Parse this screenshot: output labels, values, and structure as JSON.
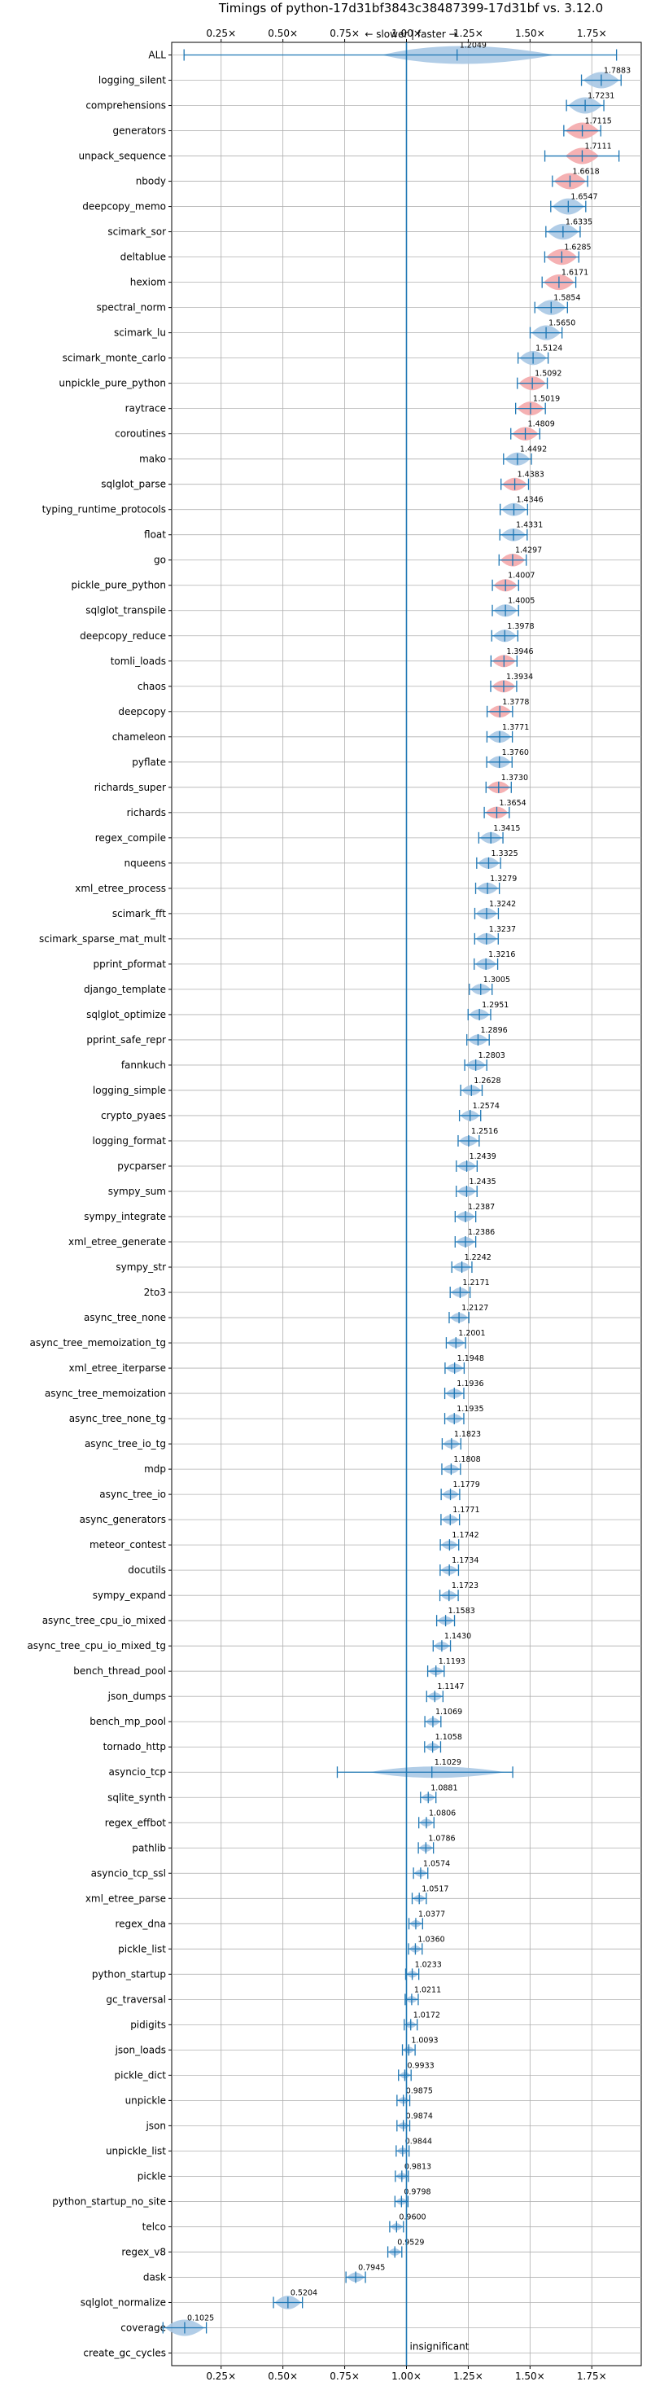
{
  "chart_data": {
    "type": "violin",
    "title": "Timings of python-17d31bf3843c38487399-17d31bf vs. 3.12.0",
    "direction_note": "← slower | faster →",
    "annotation": "insignificant",
    "xlim": [
      0.05,
      1.95
    ],
    "x_ticks": [
      0.25,
      0.5,
      0.75,
      1.0,
      1.25,
      1.5,
      1.75
    ],
    "x_tick_labels": [
      "0.25×",
      "0.50×",
      "0.75×",
      "1.00×",
      "1.25×",
      "1.50×",
      "1.75×"
    ],
    "grid": true,
    "colors": {
      "faster": "#a8c8e4",
      "improved": "#f4a8ab",
      "line": "#1f77b4"
    },
    "benchmarks": [
      {
        "name": "ALL",
        "value": 1.2049,
        "label": "1.2049",
        "color": "blue"
      },
      {
        "name": "logging_silent",
        "value": 1.7883,
        "label": "1.7883",
        "color": "blue"
      },
      {
        "name": "comprehensions",
        "value": 1.7231,
        "label": "1.7231",
        "color": "blue"
      },
      {
        "name": "generators",
        "value": 1.7115,
        "label": "1.7115",
        "color": "red"
      },
      {
        "name": "unpack_sequence",
        "value": 1.7111,
        "label": "1.7111",
        "color": "red"
      },
      {
        "name": "nbody",
        "value": 1.6618,
        "label": "1.6618",
        "color": "red"
      },
      {
        "name": "deepcopy_memo",
        "value": 1.6547,
        "label": "1.6547",
        "color": "blue"
      },
      {
        "name": "scimark_sor",
        "value": 1.6335,
        "label": "1.6335",
        "color": "blue"
      },
      {
        "name": "deltablue",
        "value": 1.6285,
        "label": "1.6285",
        "color": "red"
      },
      {
        "name": "hexiom",
        "value": 1.6171,
        "label": "1.6171",
        "color": "red"
      },
      {
        "name": "spectral_norm",
        "value": 1.5854,
        "label": "1.5854",
        "color": "blue"
      },
      {
        "name": "scimark_lu",
        "value": 1.565,
        "label": "1.5650",
        "color": "blue"
      },
      {
        "name": "scimark_monte_carlo",
        "value": 1.5124,
        "label": "1.5124",
        "color": "blue"
      },
      {
        "name": "unpickle_pure_python",
        "value": 1.5092,
        "label": "1.5092",
        "color": "red"
      },
      {
        "name": "raytrace",
        "value": 1.5019,
        "label": "1.5019",
        "color": "red"
      },
      {
        "name": "coroutines",
        "value": 1.4809,
        "label": "1.4809",
        "color": "red"
      },
      {
        "name": "mako",
        "value": 1.4492,
        "label": "1.4492",
        "color": "blue"
      },
      {
        "name": "sqlglot_parse",
        "value": 1.4383,
        "label": "1.4383",
        "color": "red"
      },
      {
        "name": "typing_runtime_protocols",
        "value": 1.4346,
        "label": "1.4346",
        "color": "blue"
      },
      {
        "name": "float",
        "value": 1.4331,
        "label": "1.4331",
        "color": "blue"
      },
      {
        "name": "go",
        "value": 1.4297,
        "label": "1.4297",
        "color": "red"
      },
      {
        "name": "pickle_pure_python",
        "value": 1.4007,
        "label": "1.4007",
        "color": "red"
      },
      {
        "name": "sqlglot_transpile",
        "value": 1.4005,
        "label": "1.4005",
        "color": "blue"
      },
      {
        "name": "deepcopy_reduce",
        "value": 1.3978,
        "label": "1.3978",
        "color": "blue"
      },
      {
        "name": "tomli_loads",
        "value": 1.3946,
        "label": "1.3946",
        "color": "red"
      },
      {
        "name": "chaos",
        "value": 1.3934,
        "label": "1.3934",
        "color": "red"
      },
      {
        "name": "deepcopy",
        "value": 1.3778,
        "label": "1.3778",
        "color": "red"
      },
      {
        "name": "chameleon",
        "value": 1.3771,
        "label": "1.3771",
        "color": "blue"
      },
      {
        "name": "pyflate",
        "value": 1.376,
        "label": "1.3760",
        "color": "blue"
      },
      {
        "name": "richards_super",
        "value": 1.373,
        "label": "1.3730",
        "color": "red"
      },
      {
        "name": "richards",
        "value": 1.3654,
        "label": "1.3654",
        "color": "red"
      },
      {
        "name": "regex_compile",
        "value": 1.3415,
        "label": "1.3415",
        "color": "blue"
      },
      {
        "name": "nqueens",
        "value": 1.3325,
        "label": "1.3325",
        "color": "blue"
      },
      {
        "name": "xml_etree_process",
        "value": 1.3279,
        "label": "1.3279",
        "color": "blue"
      },
      {
        "name": "scimark_fft",
        "value": 1.3242,
        "label": "1.3242",
        "color": "blue"
      },
      {
        "name": "scimark_sparse_mat_mult",
        "value": 1.3237,
        "label": "1.3237",
        "color": "blue"
      },
      {
        "name": "pprint_pformat",
        "value": 1.3216,
        "label": "1.3216",
        "color": "blue"
      },
      {
        "name": "django_template",
        "value": 1.3005,
        "label": "1.3005",
        "color": "blue"
      },
      {
        "name": "sqlglot_optimize",
        "value": 1.2951,
        "label": "1.2951",
        "color": "blue"
      },
      {
        "name": "pprint_safe_repr",
        "value": 1.2896,
        "label": "1.2896",
        "color": "blue"
      },
      {
        "name": "fannkuch",
        "value": 1.2803,
        "label": "1.2803",
        "color": "blue"
      },
      {
        "name": "logging_simple",
        "value": 1.2628,
        "label": "1.2628",
        "color": "blue"
      },
      {
        "name": "crypto_pyaes",
        "value": 1.2574,
        "label": "1.2574",
        "color": "blue"
      },
      {
        "name": "logging_format",
        "value": 1.2516,
        "label": "1.2516",
        "color": "blue"
      },
      {
        "name": "pycparser",
        "value": 1.2439,
        "label": "1.2439",
        "color": "blue"
      },
      {
        "name": "sympy_sum",
        "value": 1.2435,
        "label": "1.2435",
        "color": "blue"
      },
      {
        "name": "sympy_integrate",
        "value": 1.2387,
        "label": "1.2387",
        "color": "blue"
      },
      {
        "name": "xml_etree_generate",
        "value": 1.2386,
        "label": "1.2386",
        "color": "blue"
      },
      {
        "name": "sympy_str",
        "value": 1.2242,
        "label": "1.2242",
        "color": "blue"
      },
      {
        "name": "2to3",
        "value": 1.2171,
        "label": "1.2171",
        "color": "blue"
      },
      {
        "name": "async_tree_none",
        "value": 1.2127,
        "label": "1.2127",
        "color": "blue"
      },
      {
        "name": "async_tree_memoization_tg",
        "value": 1.2001,
        "label": "1.2001",
        "color": "blue"
      },
      {
        "name": "xml_etree_iterparse",
        "value": 1.1948,
        "label": "1.1948",
        "color": "blue"
      },
      {
        "name": "async_tree_memoization",
        "value": 1.1936,
        "label": "1.1936",
        "color": "blue"
      },
      {
        "name": "async_tree_none_tg",
        "value": 1.1935,
        "label": "1.1935",
        "color": "blue"
      },
      {
        "name": "async_tree_io_tg",
        "value": 1.1823,
        "label": "1.1823",
        "color": "blue"
      },
      {
        "name": "mdp",
        "value": 1.1808,
        "label": "1.1808",
        "color": "blue"
      },
      {
        "name": "async_tree_io",
        "value": 1.1779,
        "label": "1.1779",
        "color": "blue"
      },
      {
        "name": "async_generators",
        "value": 1.1771,
        "label": "1.1771",
        "color": "blue"
      },
      {
        "name": "meteor_contest",
        "value": 1.1742,
        "label": "1.1742",
        "color": "blue"
      },
      {
        "name": "docutils",
        "value": 1.1734,
        "label": "1.1734",
        "color": "blue"
      },
      {
        "name": "sympy_expand",
        "value": 1.1723,
        "label": "1.1723",
        "color": "blue"
      },
      {
        "name": "async_tree_cpu_io_mixed",
        "value": 1.1583,
        "label": "1.1583",
        "color": "blue"
      },
      {
        "name": "async_tree_cpu_io_mixed_tg",
        "value": 1.143,
        "label": "1.1430",
        "color": "blue"
      },
      {
        "name": "bench_thread_pool",
        "value": 1.1193,
        "label": "1.1193",
        "color": "blue"
      },
      {
        "name": "json_dumps",
        "value": 1.1147,
        "label": "1.1147",
        "color": "blue"
      },
      {
        "name": "bench_mp_pool",
        "value": 1.1069,
        "label": "1.1069",
        "color": "blue"
      },
      {
        "name": "tornado_http",
        "value": 1.1058,
        "label": "1.1058",
        "color": "blue"
      },
      {
        "name": "asyncio_tcp",
        "value": 1.1029,
        "label": "1.1029",
        "color": "blue"
      },
      {
        "name": "sqlite_synth",
        "value": 1.0881,
        "label": "1.0881",
        "color": "blue"
      },
      {
        "name": "regex_effbot",
        "value": 1.0806,
        "label": "1.0806",
        "color": "blue"
      },
      {
        "name": "pathlib",
        "value": 1.0786,
        "label": "1.0786",
        "color": "blue"
      },
      {
        "name": "asyncio_tcp_ssl",
        "value": 1.0574,
        "label": "1.0574",
        "color": "blue"
      },
      {
        "name": "xml_etree_parse",
        "value": 1.0517,
        "label": "1.0517",
        "color": "blue"
      },
      {
        "name": "regex_dna",
        "value": 1.0377,
        "label": "1.0377",
        "color": "blue"
      },
      {
        "name": "pickle_list",
        "value": 1.036,
        "label": "1.0360",
        "color": "blue"
      },
      {
        "name": "python_startup",
        "value": 1.0233,
        "label": "1.0233",
        "color": "blue"
      },
      {
        "name": "gc_traversal",
        "value": 1.0211,
        "label": "1.0211",
        "color": "blue"
      },
      {
        "name": "pidigits",
        "value": 1.0172,
        "label": "1.0172",
        "color": "blue"
      },
      {
        "name": "json_loads",
        "value": 1.0093,
        "label": "1.0093",
        "color": "blue"
      },
      {
        "name": "pickle_dict",
        "value": 0.9933,
        "label": "0.9933",
        "color": "blue"
      },
      {
        "name": "unpickle",
        "value": 0.9875,
        "label": "0.9875",
        "color": "blue"
      },
      {
        "name": "json",
        "value": 0.9874,
        "label": "0.9874",
        "color": "blue"
      },
      {
        "name": "unpickle_list",
        "value": 0.9844,
        "label": "0.9844",
        "color": "blue"
      },
      {
        "name": "pickle",
        "value": 0.9813,
        "label": "0.9813",
        "color": "blue"
      },
      {
        "name": "python_startup_no_site",
        "value": 0.9798,
        "label": "0.9798",
        "color": "blue"
      },
      {
        "name": "telco",
        "value": 0.96,
        "label": "0.9600",
        "color": "blue"
      },
      {
        "name": "regex_v8",
        "value": 0.9529,
        "label": "0.9529",
        "color": "blue"
      },
      {
        "name": "dask",
        "value": 0.7945,
        "label": "0.7945",
        "color": "blue"
      },
      {
        "name": "sqlglot_normalize",
        "value": 0.5204,
        "label": "0.5204",
        "color": "blue"
      },
      {
        "name": "coverage",
        "value": 0.1025,
        "label": "0.1025",
        "color": "blue"
      },
      {
        "name": "create_gc_cycles",
        "value": null,
        "label": "",
        "color": "none"
      }
    ]
  }
}
